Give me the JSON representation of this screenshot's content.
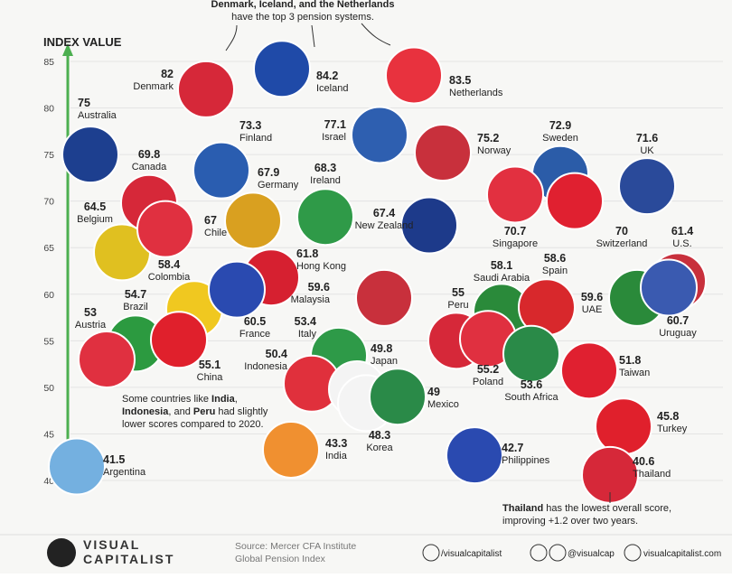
{
  "chart_data": {
    "type": "dot",
    "y_axis_title": "INDEX VALUE",
    "ylim": [
      40,
      85
    ],
    "yticks": [
      40,
      45,
      50,
      55,
      60,
      65,
      70,
      75,
      80,
      85
    ],
    "grid": true,
    "categories": [
      "Denmark",
      "Iceland",
      "Netherlands",
      "Australia",
      "Finland",
      "Germany",
      "Israel",
      "Norway",
      "Sweden",
      "UK",
      "Canada",
      "Ireland",
      "New Zealand",
      "Singapore",
      "Switzerland",
      "U.S.",
      "Belgium",
      "Chile",
      "Hong Kong",
      "Colombia",
      "France",
      "Malaysia",
      "Brazil",
      "Austria",
      "China",
      "Italy",
      "Indonesia",
      "Japan",
      "Korea",
      "Mexico",
      "India",
      "Argentina",
      "Saudi Arabia",
      "Spain",
      "Peru",
      "Poland",
      "South Africa",
      "UAE",
      "Uruguay",
      "Taiwan",
      "Turkey",
      "Philippines",
      "Thailand"
    ],
    "values": [
      82,
      84.2,
      83.5,
      75,
      73.3,
      67.9,
      77.1,
      75.2,
      72.9,
      71.6,
      69.8,
      68.3,
      67.4,
      70.7,
      70,
      61.4,
      64.5,
      67,
      61.8,
      58.4,
      60.5,
      59.6,
      54.7,
      53,
      55.1,
      53.4,
      50.4,
      49.8,
      48.3,
      49,
      43.3,
      41.5,
      58.1,
      58.6,
      55,
      55.2,
      53.6,
      59.6,
      60.7,
      51.8,
      45.8,
      42.7,
      40.6
    ],
    "colors": [
      "#d62839",
      "#1f4aa8",
      "#e8323e",
      "#1d3f8f",
      "#2a5db0",
      "#d9a020",
      "#2e5fb0",
      "#c8303c",
      "#2b5ca8",
      "#2a4a9a",
      "#d62839",
      "#2f9a48",
      "#1d3a8a",
      "#e23040",
      "#e02030",
      "#c8303c",
      "#e0c020",
      "#e03040",
      "#d62030",
      "#f0c820",
      "#2a4ab0",
      "#c8303c",
      "#2c9a40",
      "#e03040",
      "#e0202c",
      "#2e9a48",
      "#e0303c",
      "#f4f4f4",
      "#f4f4f4",
      "#2a8a48",
      "#f09030",
      "#74b0e0",
      "#2a8a3a",
      "#d8282c",
      "#d62839",
      "#e03040",
      "#2a8a48",
      "#2a8a3a",
      "#3a5ab0",
      "#e02030",
      "#e0202c",
      "#2a4ab0",
      "#d62839"
    ],
    "annotation_top": [
      "Denmark, Iceland, and the Netherlands",
      "have the top 3 pension systems."
    ],
    "annotation_middle": [
      "Some countries like ",
      "India",
      ",",
      "Indonesia",
      ", and ",
      "Peru",
      " had slightly",
      "lower scores compared to 2020."
    ],
    "annotation_bottom": [
      "Thailand",
      " has the lowest overall score,",
      "improving +1.2 over two years."
    ]
  },
  "footer": {
    "brand": [
      "VISUAL",
      "CAPITALIST"
    ],
    "source": [
      "Source: Mercer CFA Institute",
      "Global Pension Index"
    ],
    "facebook": "/visualcapitalist",
    "instagram": "@visualcap",
    "website": "visualcapitalist.com"
  }
}
